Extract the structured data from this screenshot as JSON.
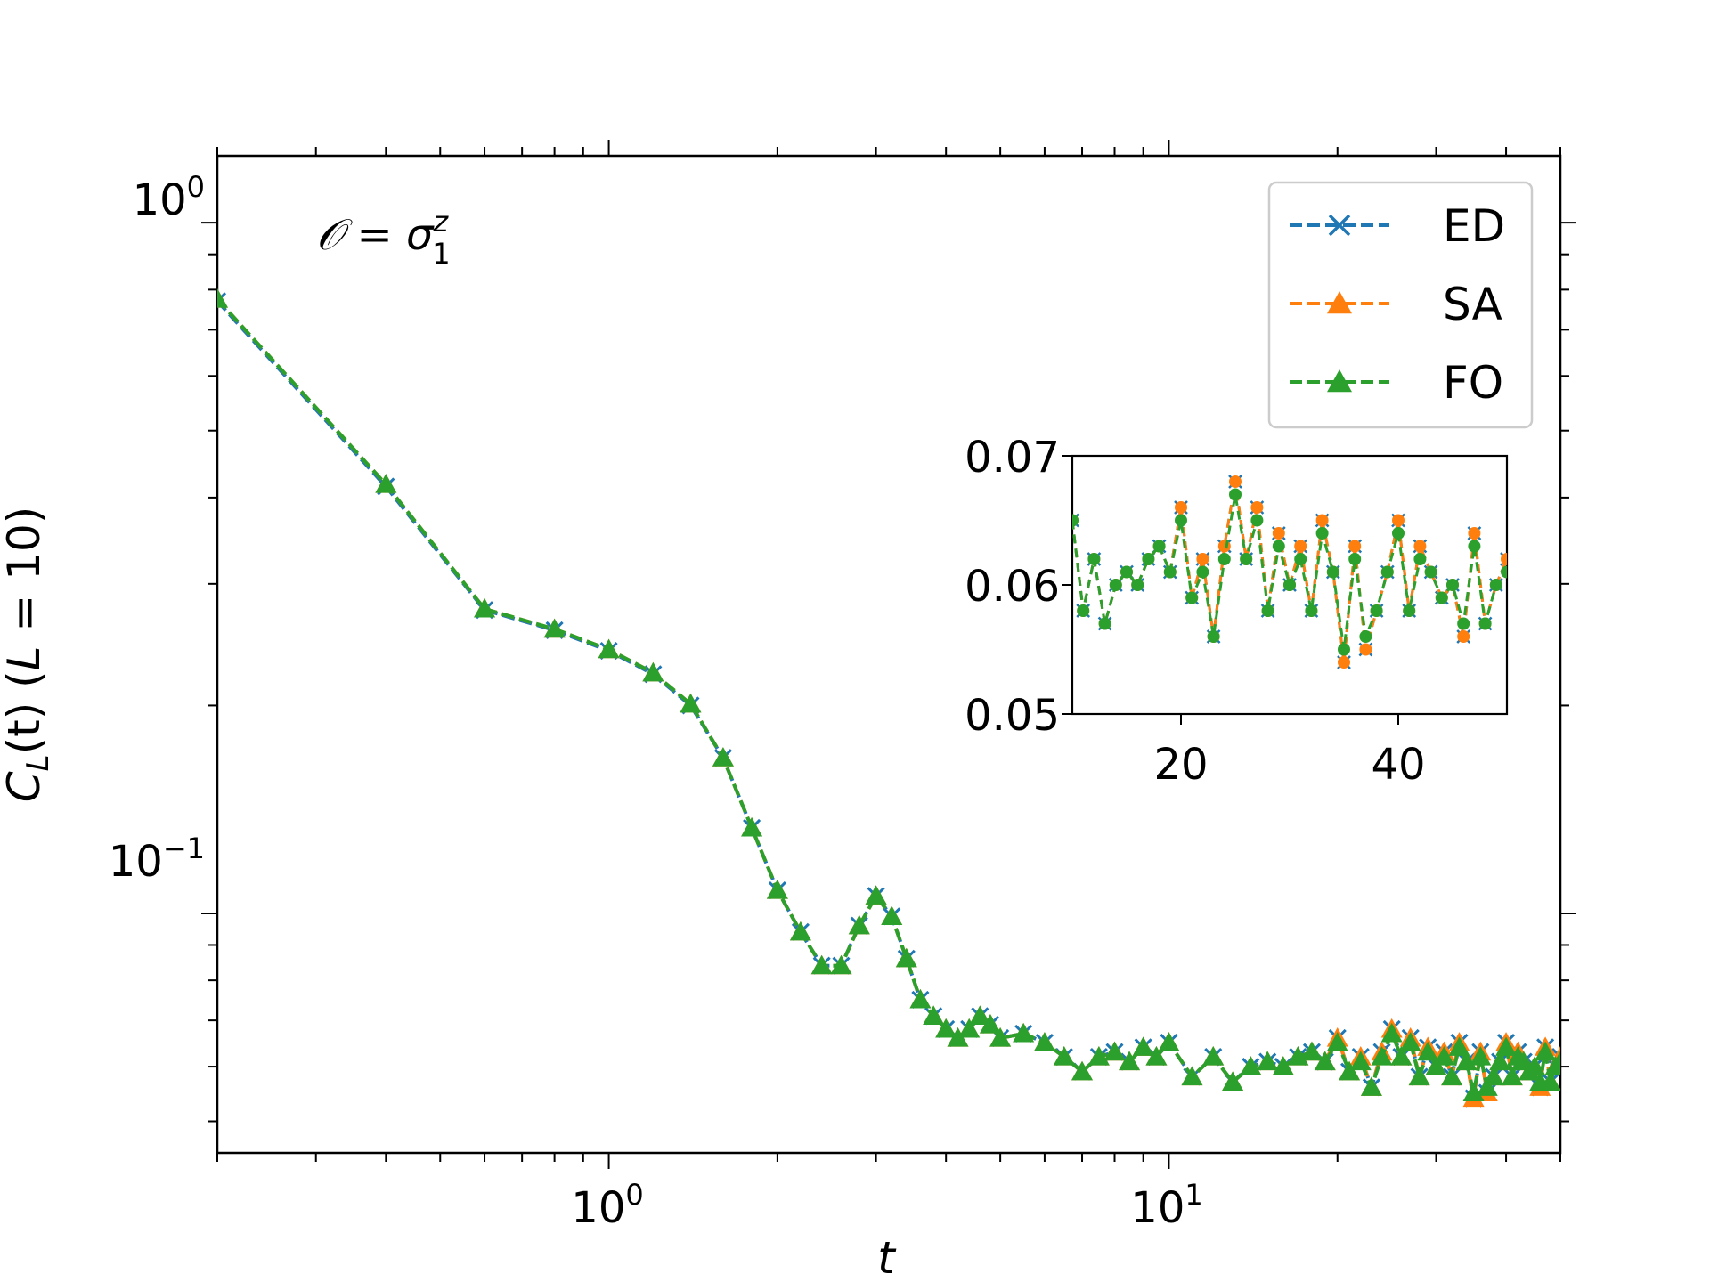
{
  "chart_data": [
    {
      "type": "line",
      "scale": {
        "x": "log",
        "y": "log"
      },
      "xlabel": "t",
      "ylabel": "C_L(t)  (L = 10)",
      "ylabel_parts": {
        "c": "C",
        "sub": "L",
        "rest": "(t) (",
        "l": "L",
        "eq": " = 10)"
      },
      "annotation": {
        "lhs": "𝒪 = σ",
        "sup": "z",
        "sub": "1"
      },
      "xlim": [
        0.2,
        50
      ],
      "ylim": [
        0.045,
        1.25
      ],
      "xticks": [
        {
          "base": "10",
          "exp": "0",
          "value": 1
        },
        {
          "base": "10",
          "exp": "1",
          "value": 10
        }
      ],
      "yticks": [
        {
          "base": "10",
          "exp": "0",
          "value": 1
        },
        {
          "base": "10",
          "exp": "−1",
          "value": 0.1
        }
      ],
      "legend": {
        "position": "top-right",
        "entries": [
          "ED",
          "SA",
          "FO"
        ]
      },
      "series": [
        {
          "name": "ED",
          "color": "#1f77b4",
          "marker": "x",
          "x": [
            0.2,
            0.4,
            0.6,
            0.8,
            1.0,
            1.2,
            1.4,
            1.6,
            1.8,
            2.0,
            2.2,
            2.4,
            2.6,
            2.8,
            3.0,
            3.2,
            3.4,
            3.6,
            3.8,
            4.0,
            4.2,
            4.4,
            4.6,
            4.8,
            5.0,
            5.5,
            6.0,
            6.5,
            7.0,
            7.5,
            8.0,
            8.5,
            9.0,
            9.5,
            10.0,
            11.0,
            12.0,
            13.0,
            14.0,
            15.0,
            16.0,
            17.0,
            18.0,
            19.0,
            20.0,
            21.0,
            22.0,
            23.0,
            24.0,
            25.0,
            26.0,
            27.0,
            28.0,
            29.0,
            30.0,
            31.0,
            32.0,
            33.0,
            34.0,
            35.0,
            36.0,
            37.0,
            38.0,
            39.0,
            40.0,
            41.0,
            42.0,
            43.0,
            44.0,
            45.0,
            46.0,
            47.0,
            48.0,
            49.0,
            50.0
          ],
          "y": [
            0.77,
            0.415,
            0.275,
            0.257,
            0.24,
            0.222,
            0.2,
            0.168,
            0.133,
            0.108,
            0.094,
            0.084,
            0.084,
            0.096,
            0.106,
            0.099,
            0.086,
            0.075,
            0.071,
            0.068,
            0.066,
            0.068,
            0.071,
            0.069,
            0.066,
            0.067,
            0.065,
            0.062,
            0.059,
            0.062,
            0.063,
            0.061,
            0.064,
            0.062,
            0.065,
            0.058,
            0.062,
            0.057,
            0.06,
            0.061,
            0.06,
            0.062,
            0.063,
            0.061,
            0.066,
            0.059,
            0.062,
            0.056,
            0.063,
            0.068,
            0.062,
            0.066,
            0.058,
            0.064,
            0.06,
            0.063,
            0.058,
            0.065,
            0.061,
            0.054,
            0.063,
            0.055,
            0.058,
            0.061,
            0.065,
            0.058,
            0.063,
            0.061,
            0.059,
            0.06,
            0.056,
            0.064,
            0.057,
            0.06,
            0.062
          ]
        },
        {
          "name": "SA",
          "color": "#ff7f0e",
          "marker": "^",
          "x": [
            0.2,
            0.4,
            0.6,
            0.8,
            1.0,
            1.2,
            1.4,
            1.6,
            1.8,
            2.0,
            2.2,
            2.4,
            2.6,
            2.8,
            3.0,
            3.2,
            3.4,
            3.6,
            3.8,
            4.0,
            4.2,
            4.4,
            4.6,
            4.8,
            5.0,
            5.5,
            6.0,
            6.5,
            7.0,
            7.5,
            8.0,
            8.5,
            9.0,
            9.5,
            10.0,
            11.0,
            12.0,
            13.0,
            14.0,
            15.0,
            16.0,
            17.0,
            18.0,
            19.0,
            20.0,
            21.0,
            22.0,
            23.0,
            24.0,
            25.0,
            26.0,
            27.0,
            28.0,
            29.0,
            30.0,
            31.0,
            32.0,
            33.0,
            34.0,
            35.0,
            36.0,
            37.0,
            38.0,
            39.0,
            40.0,
            41.0,
            42.0,
            43.0,
            44.0,
            45.0,
            46.0,
            47.0,
            48.0,
            49.0,
            50.0
          ],
          "y": [
            0.775,
            0.418,
            0.276,
            0.258,
            0.241,
            0.223,
            0.201,
            0.168,
            0.133,
            0.108,
            0.094,
            0.084,
            0.084,
            0.096,
            0.106,
            0.099,
            0.086,
            0.075,
            0.071,
            0.068,
            0.066,
            0.068,
            0.071,
            0.069,
            0.066,
            0.067,
            0.065,
            0.062,
            0.059,
            0.062,
            0.063,
            0.061,
            0.064,
            0.062,
            0.065,
            0.058,
            0.062,
            0.057,
            0.06,
            0.061,
            0.06,
            0.062,
            0.063,
            0.061,
            0.066,
            0.059,
            0.062,
            0.056,
            0.063,
            0.068,
            0.062,
            0.066,
            0.058,
            0.064,
            0.06,
            0.063,
            0.058,
            0.065,
            0.061,
            0.054,
            0.063,
            0.055,
            0.058,
            0.061,
            0.065,
            0.058,
            0.063,
            0.061,
            0.059,
            0.06,
            0.056,
            0.064,
            0.057,
            0.06,
            0.062
          ]
        },
        {
          "name": "FO",
          "color": "#2ca02c",
          "marker": "^",
          "x": [
            0.2,
            0.4,
            0.6,
            0.8,
            1.0,
            1.2,
            1.4,
            1.6,
            1.8,
            2.0,
            2.2,
            2.4,
            2.6,
            2.8,
            3.0,
            3.2,
            3.4,
            3.6,
            3.8,
            4.0,
            4.2,
            4.4,
            4.6,
            4.8,
            5.0,
            5.5,
            6.0,
            6.5,
            7.0,
            7.5,
            8.0,
            8.5,
            9.0,
            9.5,
            10.0,
            11.0,
            12.0,
            13.0,
            14.0,
            15.0,
            16.0,
            17.0,
            18.0,
            19.0,
            20.0,
            21.0,
            22.0,
            23.0,
            24.0,
            25.0,
            26.0,
            27.0,
            28.0,
            29.0,
            30.0,
            31.0,
            32.0,
            33.0,
            34.0,
            35.0,
            36.0,
            37.0,
            38.0,
            39.0,
            40.0,
            41.0,
            42.0,
            43.0,
            44.0,
            45.0,
            46.0,
            47.0,
            48.0,
            49.0,
            50.0
          ],
          "y": [
            0.775,
            0.418,
            0.276,
            0.258,
            0.241,
            0.223,
            0.201,
            0.168,
            0.133,
            0.108,
            0.094,
            0.084,
            0.084,
            0.096,
            0.106,
            0.099,
            0.086,
            0.075,
            0.071,
            0.068,
            0.066,
            0.068,
            0.071,
            0.069,
            0.066,
            0.067,
            0.065,
            0.062,
            0.059,
            0.062,
            0.063,
            0.061,
            0.064,
            0.062,
            0.065,
            0.058,
            0.062,
            0.057,
            0.06,
            0.061,
            0.06,
            0.062,
            0.063,
            0.061,
            0.065,
            0.059,
            0.061,
            0.056,
            0.062,
            0.067,
            0.062,
            0.065,
            0.058,
            0.063,
            0.06,
            0.062,
            0.058,
            0.064,
            0.061,
            0.055,
            0.062,
            0.056,
            0.058,
            0.061,
            0.064,
            0.058,
            0.062,
            0.061,
            0.059,
            0.06,
            0.057,
            0.063,
            0.057,
            0.06,
            0.061
          ]
        }
      ]
    },
    {
      "type": "line",
      "role": "inset",
      "scale": {
        "x": "linear",
        "y": "linear"
      },
      "xlim": [
        10,
        50
      ],
      "ylim": [
        0.05,
        0.07
      ],
      "xticks": [
        20,
        40
      ],
      "xtick_labels": [
        "20",
        "40"
      ],
      "yticks": [
        0.05,
        0.06,
        0.07
      ],
      "ytick_labels": [
        "0.05",
        "0.06",
        "0.07"
      ],
      "series_source": "same as main chart, t >= 10 (ED: x markers, SA: orange dots, FO: green dots)"
    }
  ]
}
